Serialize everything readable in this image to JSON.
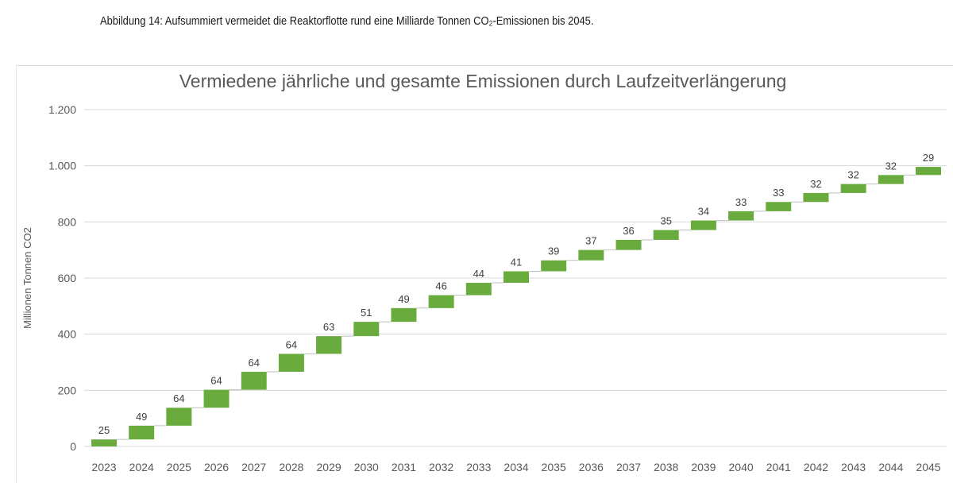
{
  "caption": "Abbildung 14: Aufsummiert vermeidet die Reaktorflotte rund eine Milliarde Tonnen CO₂-Emissionen bis 2045.",
  "chart_data": {
    "type": "bar",
    "subtype": "waterfall",
    "title": "Vermiedene jährliche und gesamte Emissionen durch Laufzeitverlängerung",
    "xlabel": "",
    "ylabel": "Millionen Tonnen CO2",
    "ylim": [
      0,
      1200
    ],
    "yticks": [
      0,
      200,
      400,
      600,
      800,
      1000,
      1200
    ],
    "ytick_labels": [
      "0",
      "200",
      "400",
      "600",
      "800",
      "1.000",
      "1.200"
    ],
    "grid": true,
    "bar_color": "#6aab3e",
    "categories": [
      "2023",
      "2024",
      "2025",
      "2026",
      "2027",
      "2028",
      "2029",
      "2030",
      "2031",
      "2032",
      "2033",
      "2034",
      "2035",
      "2036",
      "2037",
      "2038",
      "2039",
      "2040",
      "2041",
      "2042",
      "2043",
      "2044",
      "2045"
    ],
    "values": [
      25,
      49,
      64,
      64,
      64,
      64,
      63,
      51,
      49,
      46,
      44,
      41,
      39,
      37,
      36,
      35,
      34,
      33,
      33,
      32,
      32,
      32,
      29
    ]
  }
}
